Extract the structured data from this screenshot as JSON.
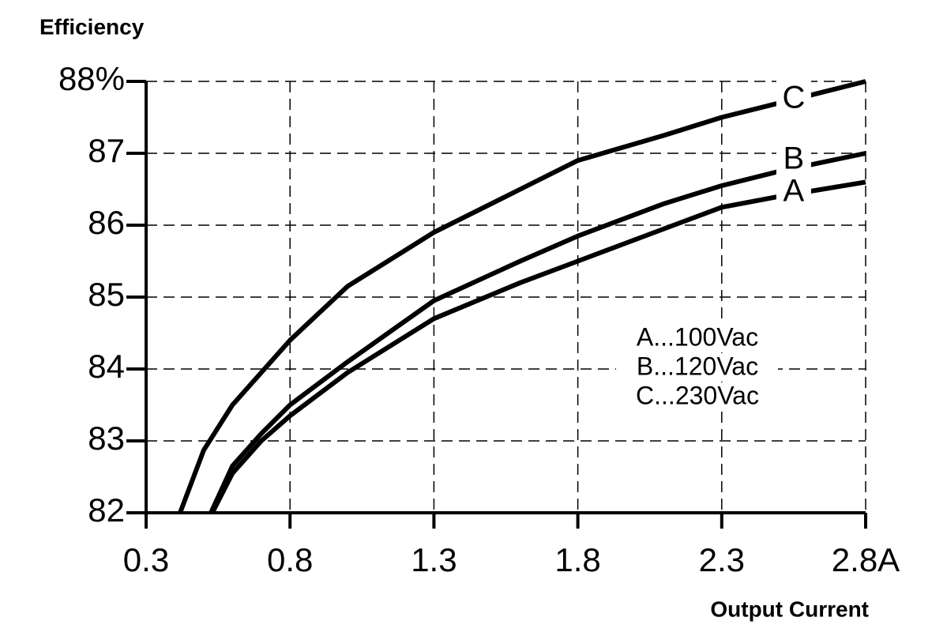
{
  "chart_data": {
    "type": "line",
    "y_label": "Efficiency",
    "x_label": "Output Current",
    "xlim": [
      0.3,
      2.8
    ],
    "ylim": [
      82,
      88
    ],
    "xticks": [
      0.3,
      0.8,
      1.3,
      1.8,
      2.3,
      {
        "value": 2.8,
        "label": "2.8A"
      }
    ],
    "yticks": [
      82,
      83,
      84,
      85,
      86,
      87,
      {
        "value": 88,
        "label": "88%"
      }
    ],
    "grid": true,
    "legend_text": [
      "A...100Vac",
      "B...120Vac",
      "C...230Vac"
    ],
    "series": [
      {
        "name": "A",
        "color": "#000000",
        "x": [
          0.53,
          0.6,
          0.7,
          0.8,
          1.0,
          1.3,
          1.6,
          1.8,
          2.1,
          2.3,
          2.5,
          2.8
        ],
        "values": [
          82,
          82.55,
          83.0,
          83.35,
          83.95,
          84.7,
          85.2,
          85.5,
          85.95,
          86.25,
          86.4,
          86.6
        ]
      },
      {
        "name": "B",
        "color": "#000000",
        "x": [
          0.525,
          0.6,
          0.7,
          0.8,
          1.0,
          1.3,
          1.6,
          1.8,
          2.1,
          2.3,
          2.5,
          2.8
        ],
        "values": [
          82,
          82.65,
          83.1,
          83.5,
          84.1,
          84.95,
          85.5,
          85.85,
          86.3,
          86.55,
          86.75,
          87
        ]
      },
      {
        "name": "C",
        "color": "#000000",
        "x": [
          0.418,
          0.5,
          0.6,
          0.8,
          1.0,
          1.3,
          1.6,
          1.8,
          2.1,
          2.3,
          2.5,
          2.8
        ],
        "values": [
          82,
          82.87,
          83.5,
          84.4,
          85.15,
          85.9,
          86.5,
          86.9,
          87.25,
          87.5,
          87.7,
          88
        ]
      }
    ]
  }
}
